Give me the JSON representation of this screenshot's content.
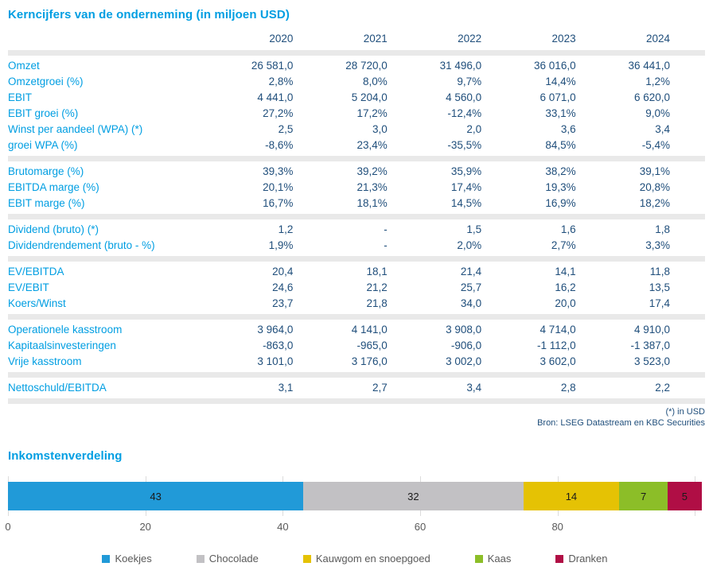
{
  "table": {
    "title": "Kerncijfers van de onderneming (in miljoen USD)",
    "years": [
      "2020",
      "2021",
      "2022",
      "2023",
      "2024"
    ],
    "groups": [
      {
        "rows": [
          {
            "label": "Omzet",
            "values": [
              "26 581,0",
              "28 720,0",
              "31 496,0",
              "36 016,0",
              "36 441,0"
            ]
          },
          {
            "label": "Omzetgroei (%)",
            "values": [
              "2,8%",
              "8,0%",
              "9,7%",
              "14,4%",
              "1,2%"
            ]
          },
          {
            "label": "EBIT",
            "values": [
              "4 441,0",
              "5 204,0",
              "4 560,0",
              "6 071,0",
              "6 620,0"
            ]
          },
          {
            "label": "EBIT groei (%)",
            "values": [
              "27,2%",
              "17,2%",
              "-12,4%",
              "33,1%",
              "9,0%"
            ]
          },
          {
            "label": "Winst per aandeel (WPA) (*)",
            "values": [
              "2,5",
              "3,0",
              "2,0",
              "3,6",
              "3,4"
            ]
          },
          {
            "label": "groei WPA (%)",
            "values": [
              "-8,6%",
              "23,4%",
              "-35,5%",
              "84,5%",
              "-5,4%"
            ]
          }
        ]
      },
      {
        "rows": [
          {
            "label": "Brutomarge (%)",
            "values": [
              "39,3%",
              "39,2%",
              "35,9%",
              "38,2%",
              "39,1%"
            ]
          },
          {
            "label": "EBITDA marge (%)",
            "values": [
              "20,1%",
              "21,3%",
              "17,4%",
              "19,3%",
              "20,8%"
            ]
          },
          {
            "label": "EBIT marge (%)",
            "values": [
              "16,7%",
              "18,1%",
              "14,5%",
              "16,9%",
              "18,2%"
            ]
          }
        ]
      },
      {
        "rows": [
          {
            "label": "Dividend (bruto) (*)",
            "values": [
              "1,2",
              "-",
              "1,5",
              "1,6",
              "1,8"
            ]
          },
          {
            "label": "Dividendrendement (bruto - %)",
            "values": [
              "1,9%",
              "-",
              "2,0%",
              "2,7%",
              "3,3%"
            ]
          }
        ]
      },
      {
        "rows": [
          {
            "label": "EV/EBITDA",
            "values": [
              "20,4",
              "18,1",
              "21,4",
              "14,1",
              "11,8"
            ]
          },
          {
            "label": "EV/EBIT",
            "values": [
              "24,6",
              "21,2",
              "25,7",
              "16,2",
              "13,5"
            ]
          },
          {
            "label": "Koers/Winst",
            "values": [
              "23,7",
              "21,8",
              "34,0",
              "20,0",
              "17,4"
            ]
          }
        ]
      },
      {
        "rows": [
          {
            "label": "Operationele kasstroom",
            "values": [
              "3 964,0",
              "4 141,0",
              "3 908,0",
              "4 714,0",
              "4 910,0"
            ]
          },
          {
            "label": "Kapitaalsinvesteringen",
            "values": [
              "-863,0",
              "-965,0",
              "-906,0",
              "-1 112,0",
              "-1 387,0"
            ]
          },
          {
            "label": "Vrije kasstroom",
            "values": [
              "3 101,0",
              "3 176,0",
              "3 002,0",
              "3 602,0",
              "3 523,0"
            ]
          }
        ]
      },
      {
        "rows": [
          {
            "label": "Nettoschuld/EBITDA",
            "values": [
              "3,1",
              "2,7",
              "3,4",
              "2,8",
              "2,2"
            ]
          }
        ]
      }
    ],
    "footnote": "(*) in USD",
    "source": "Bron: LSEG Datastream en KBC Securities"
  },
  "chart": {
    "title": "Inkomstenverdeling"
  },
  "chart_data": [
    {
      "type": "table",
      "title": "Kerncijfers van de onderneming (in miljoen USD)",
      "columns": [
        "2020",
        "2021",
        "2022",
        "2023",
        "2024"
      ],
      "note": "values mirrored from table.groups"
    },
    {
      "type": "bar",
      "stacked": true,
      "orientation": "horizontal",
      "title": "Inkomstenverdeling",
      "series": [
        {
          "name": "Koekjes",
          "value": 43,
          "color": "#219ad8"
        },
        {
          "name": "Chocolade",
          "value": 32,
          "color": "#c2c1c4"
        },
        {
          "name": "Kauwgom en snoepgoed",
          "value": 14,
          "color": "#e5c204"
        },
        {
          "name": "Kaas",
          "value": 7,
          "color": "#8cbe28"
        },
        {
          "name": "Dranken",
          "value": 5,
          "color": "#b00e45"
        }
      ],
      "xlim": [
        0,
        101
      ],
      "x_tick_labels": [
        0,
        20,
        40,
        60,
        80
      ],
      "tick_lines": [
        0,
        20,
        40,
        60,
        80,
        100
      ],
      "grid": false,
      "legend_position": "bottom",
      "value_labels": "inside-center"
    }
  ],
  "colors": {
    "accent_blue": "#009ee2",
    "value_navy": "#1f4e7b",
    "separator_gray": "#e9e9e9",
    "axis_text": "#595959"
  }
}
